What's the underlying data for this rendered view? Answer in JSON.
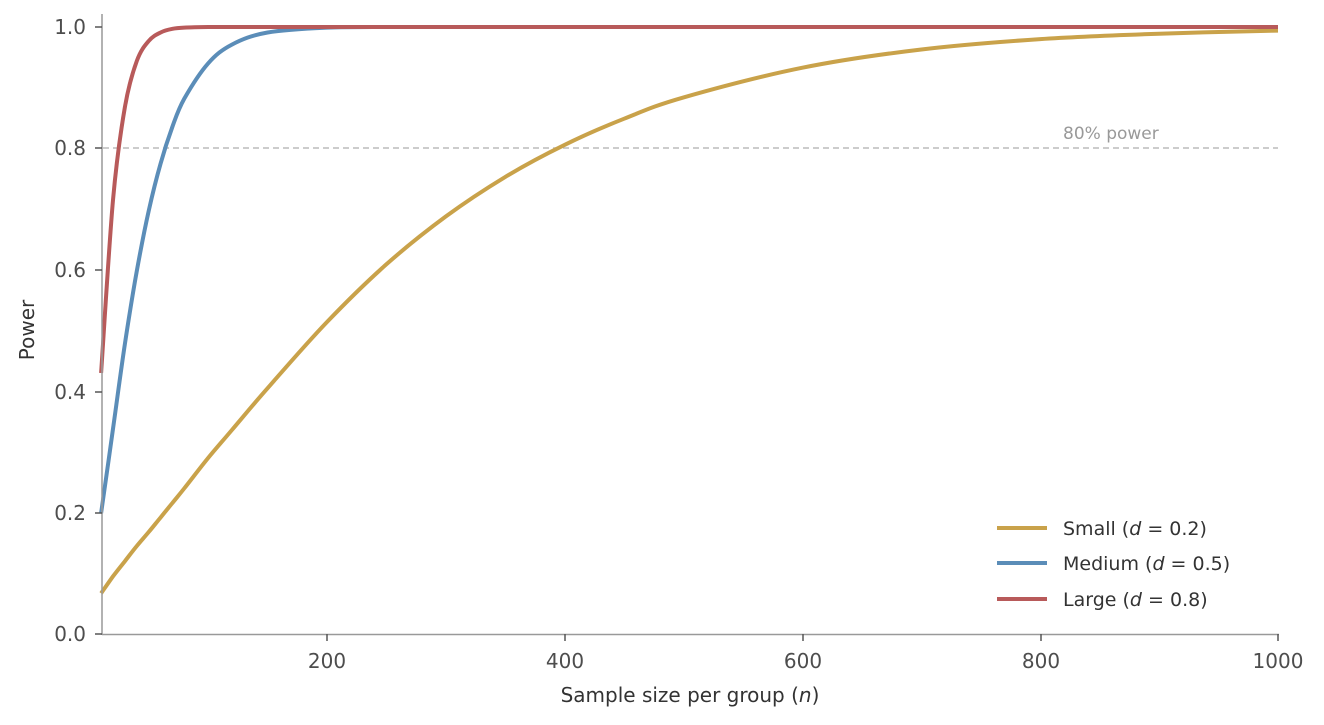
{
  "chart_data": {
    "type": "line",
    "title": "",
    "xlabel": "Sample size per group (n)",
    "ylabel": "Power",
    "xlim": [
      10,
      1000
    ],
    "ylim": [
      0.0,
      1.0
    ],
    "xticks": [
      200,
      400,
      600,
      800,
      1000
    ],
    "yticks": [
      0.0,
      0.2,
      0.4,
      0.6,
      0.8,
      1.0
    ],
    "grid": false,
    "legend_position": "lower right",
    "reference_line": {
      "y": 0.8,
      "label": "80% power",
      "style": "dashed",
      "color": "#bbbbbb"
    },
    "x": [
      10,
      20,
      30,
      40,
      50,
      60,
      70,
      80,
      100,
      120,
      150,
      200,
      250,
      300,
      350,
      400,
      450,
      500,
      600,
      700,
      800,
      900,
      1000
    ],
    "series": [
      {
        "name": "Small (d = 0.2)",
        "color": "#c9a24a",
        "values": [
          0.067,
          0.095,
          0.12,
          0.145,
          0.168,
          0.192,
          0.216,
          0.24,
          0.29,
          0.336,
          0.405,
          0.514,
          0.609,
          0.688,
          0.753,
          0.806,
          0.849,
          0.884,
          0.933,
          0.963,
          0.98,
          0.989,
          0.994
        ]
      },
      {
        "name": "Medium (d = 0.5)",
        "color": "#5b8db8",
        "values": [
          0.199,
          0.338,
          0.478,
          0.598,
          0.697,
          0.775,
          0.836,
          0.882,
          0.94,
          0.971,
          0.991,
          0.999,
          1.0,
          1.0,
          1.0,
          1.0,
          1.0,
          1.0,
          1.0,
          1.0,
          1.0,
          1.0,
          1.0
        ]
      },
      {
        "name": "Large (d = 0.8)",
        "color": "#b85a5a",
        "values": [
          0.43,
          0.715,
          0.868,
          0.944,
          0.977,
          0.991,
          0.997,
          0.999,
          1.0,
          1.0,
          1.0,
          1.0,
          1.0,
          1.0,
          1.0,
          1.0,
          1.0,
          1.0,
          1.0,
          1.0,
          1.0,
          1.0,
          1.0
        ]
      }
    ]
  },
  "axes": {
    "xlabel_main": "Sample size per group (",
    "xlabel_var": "n",
    "xlabel_end": ")",
    "ylabel": "Power",
    "xtick_labels": [
      "200",
      "400",
      "600",
      "800",
      "1000"
    ],
    "ytick_labels": [
      "0.0",
      "0.2",
      "0.4",
      "0.6",
      "0.8",
      "1.0"
    ]
  },
  "annotation": {
    "text": "80% power"
  },
  "legend": {
    "items": [
      {
        "prefix": "Small (",
        "var": "d",
        "suffix": " = 0.2)",
        "color": "#c9a24a"
      },
      {
        "prefix": "Medium (",
        "var": "d",
        "suffix": " = 0.5)",
        "color": "#5b8db8"
      },
      {
        "prefix": "Large (",
        "var": "d",
        "suffix": " = 0.8)",
        "color": "#b85a5a"
      }
    ]
  }
}
